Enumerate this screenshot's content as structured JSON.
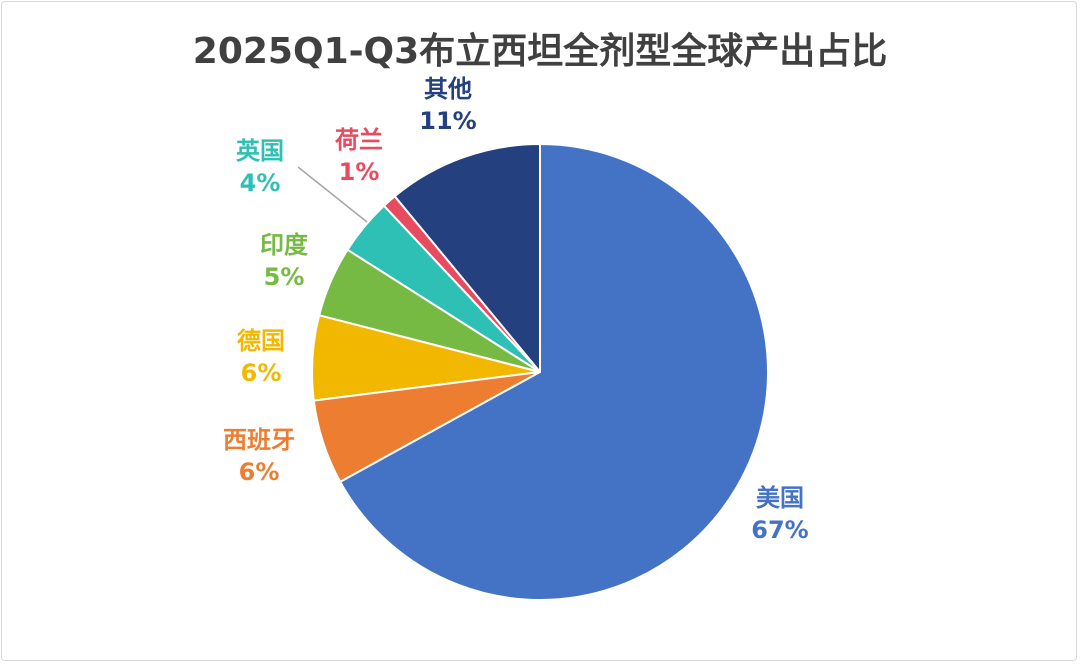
{
  "chart_data": {
    "type": "pie",
    "title": "2025Q1-Q3布立西坦全剂型全球产出占比",
    "start": "top",
    "direction": "clockwise",
    "slices": [
      {
        "label": "美国",
        "value": 67,
        "display": "67%",
        "color": "#4472C4"
      },
      {
        "label": "西班牙",
        "value": 6,
        "display": "6%",
        "color": "#ED7D31"
      },
      {
        "label": "德国",
        "value": 6,
        "display": "6%",
        "color": "#F2B800"
      },
      {
        "label": "印度",
        "value": 5,
        "display": "5%",
        "color": "#76B943"
      },
      {
        "label": "英国",
        "value": 4,
        "display": "4%",
        "color": "#2EC0B4"
      },
      {
        "label": "荷兰",
        "value": 1,
        "display": "1%",
        "color": "#E84A5F"
      },
      {
        "label": "其他",
        "value": 11,
        "display": "11%",
        "color": "#24407E"
      }
    ],
    "legend": "none"
  }
}
